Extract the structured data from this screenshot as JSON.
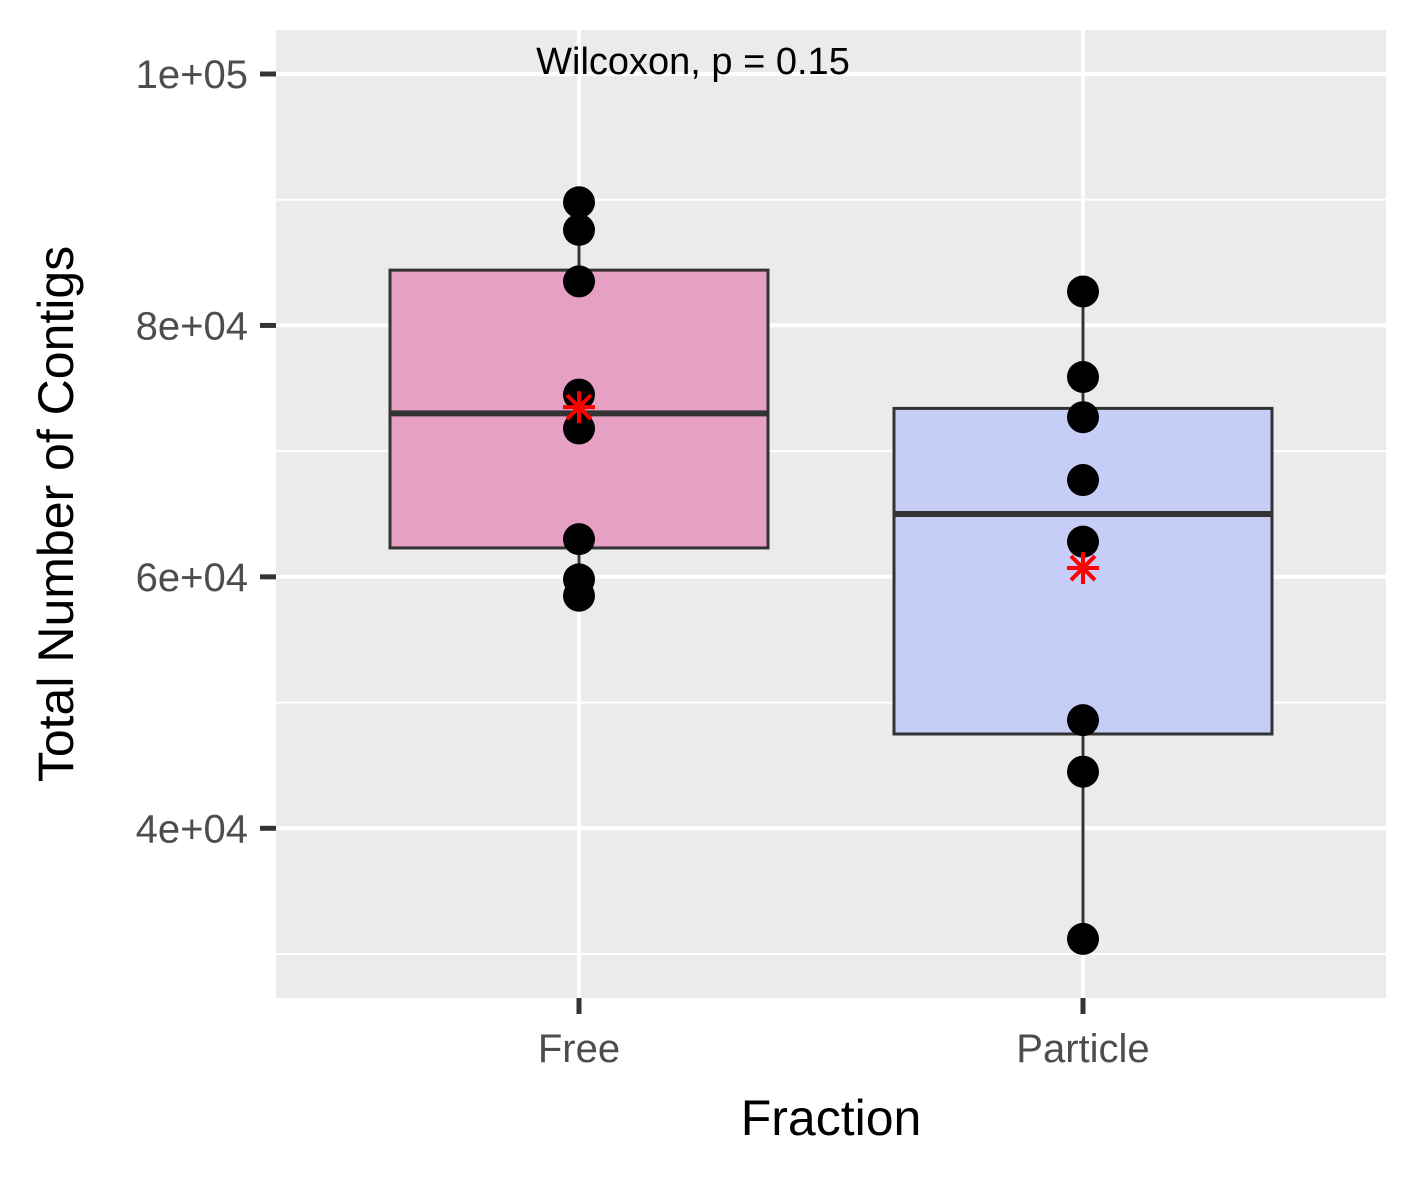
{
  "chart_data": {
    "type": "box",
    "xlabel": "Fraction",
    "ylabel": "Total Number of Contigs",
    "categories": [
      "Free",
      "Particle"
    ],
    "ylim": [
      26500,
      103500
    ],
    "yticks": [
      40000,
      60000,
      80000,
      100000
    ],
    "ytick_labels": [
      "4e+04",
      "6e+04",
      "8e+04",
      "1e+05"
    ],
    "grid": true,
    "annotation": "Wilcoxon, p = 0.15",
    "groups": [
      {
        "name": "Free",
        "fill": "#e6a0c4",
        "box": {
          "q1": 62300,
          "median": 73000,
          "q3": 84400,
          "whisker_low": 58500,
          "whisker_high": 89800
        },
        "mean": 73500,
        "points": [
          89800,
          87600,
          83500,
          74500,
          71800,
          63000,
          59800,
          58500
        ]
      },
      {
        "name": "Particle",
        "fill": "#c6cdf7",
        "box": {
          "q1": 47500,
          "median": 65000,
          "q3": 73400,
          "whisker_low": 31200,
          "whisker_high": 82700
        },
        "mean": 60700,
        "points": [
          82700,
          75900,
          72700,
          67700,
          62800,
          48600,
          44500,
          31200
        ]
      }
    ],
    "colors": {
      "panel_bg": "#ebebeb",
      "grid": "#ffffff",
      "box_line": "#333333",
      "point": "#000000",
      "mean_marker": "#ff0000"
    }
  }
}
